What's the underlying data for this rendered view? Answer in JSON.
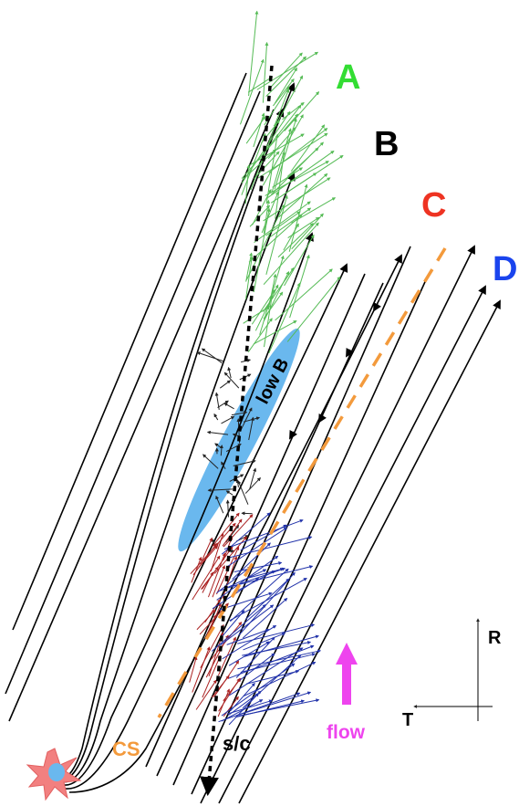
{
  "labels": {
    "A": "A",
    "B": "B",
    "C": "C",
    "D": "D",
    "low_b": "low B",
    "cs": "CS",
    "sc": "s/c",
    "flow": "flow",
    "axis_r": "R",
    "axis_t": "T"
  },
  "colors": {
    "A": "#33dd33",
    "B": "#000000",
    "C": "#ee3322",
    "D": "#1a44ee",
    "cs": "#f39a3c",
    "flow": "#ee44ee",
    "low_b_region": "#6ab8ee",
    "green_vectors": "#55bb55",
    "red_vectors": "#aa2222",
    "blue_vectors": "#2233aa",
    "field_lines": "#000000",
    "burst": "#f28080"
  },
  "icons": {
    "source": "star-burst-icon",
    "flow": "arrow-up-icon",
    "axes": "axis-cross-icon"
  }
}
